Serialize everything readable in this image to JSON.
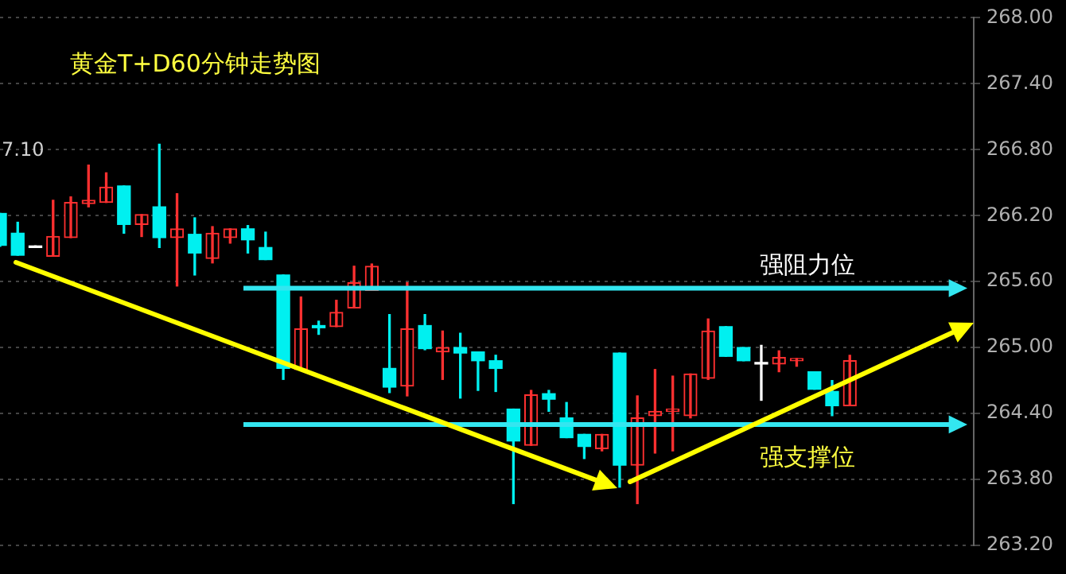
{
  "chart_data": {
    "type": "candlestick",
    "title": "黄金T+D60分钟走势图",
    "annotations": [
      "7.10"
    ],
    "categories": [
      null,
      null,
      null,
      null,
      null,
      null,
      null,
      null,
      null,
      null,
      null,
      null,
      null,
      null,
      null,
      null,
      null,
      null,
      null,
      null,
      null,
      null,
      null,
      null,
      null,
      null,
      null,
      null,
      null,
      null,
      null,
      null,
      null,
      null,
      null,
      null,
      null,
      null,
      null,
      null,
      null,
      null,
      null,
      null,
      null,
      null,
      null,
      null,
      null,
      null,
      null,
      null,
      null,
      null,
      null,
      null
    ],
    "ohlc": [
      [
        266.22,
        266.22,
        265.92,
        265.93
      ],
      [
        266.04,
        266.14,
        265.84,
        265.84
      ],
      [
        265.91,
        265.91,
        265.91,
        265.91
      ],
      [
        265.83,
        266.34,
        265.83,
        266.01
      ],
      [
        266.0,
        266.37,
        266.0,
        266.32
      ],
      [
        266.31,
        266.66,
        266.28,
        266.34
      ],
      [
        266.32,
        266.59,
        266.32,
        266.46
      ],
      [
        266.47,
        266.47,
        266.04,
        266.12
      ],
      [
        266.12,
        266.21,
        266.01,
        266.21
      ],
      [
        266.28,
        266.85,
        265.91,
        266.0
      ],
      [
        266.0,
        266.4,
        265.56,
        266.08
      ],
      [
        266.03,
        266.18,
        265.66,
        265.86
      ],
      [
        265.81,
        266.1,
        265.77,
        266.04
      ],
      [
        266.0,
        266.08,
        265.95,
        266.08
      ],
      [
        266.08,
        266.11,
        265.86,
        265.98
      ],
      [
        265.91,
        266.05,
        265.8,
        265.8
      ],
      [
        265.66,
        265.66,
        264.71,
        264.81
      ],
      [
        264.8,
        265.46,
        264.8,
        265.17
      ],
      [
        265.2,
        265.24,
        265.12,
        265.18
      ],
      [
        265.19,
        265.43,
        265.19,
        265.32
      ],
      [
        265.36,
        265.74,
        265.36,
        265.59
      ],
      [
        265.52,
        265.76,
        265.52,
        265.74
      ],
      [
        264.81,
        265.3,
        264.59,
        264.64
      ],
      [
        264.65,
        265.59,
        264.56,
        265.17
      ],
      [
        265.2,
        265.3,
        264.98,
        264.99
      ],
      [
        264.96,
        265.15,
        264.71,
        265.0
      ],
      [
        265.0,
        265.13,
        264.54,
        264.95
      ],
      [
        264.96,
        264.96,
        264.61,
        264.88
      ],
      [
        264.88,
        264.93,
        264.6,
        264.81
      ],
      [
        264.44,
        264.44,
        263.58,
        264.15
      ],
      [
        264.11,
        264.61,
        264.11,
        264.57
      ],
      [
        264.58,
        264.61,
        264.42,
        264.53
      ],
      [
        264.36,
        264.5,
        264.18,
        264.18
      ],
      [
        264.21,
        264.21,
        263.99,
        264.1
      ],
      [
        264.08,
        264.21,
        264.06,
        264.21
      ],
      [
        264.95,
        264.95,
        263.73,
        263.93
      ],
      [
        263.93,
        264.56,
        263.58,
        264.36
      ],
      [
        264.38,
        264.8,
        264.04,
        264.42
      ],
      [
        264.42,
        264.74,
        264.06,
        264.44
      ],
      [
        264.38,
        264.76,
        264.36,
        264.76
      ],
      [
        264.72,
        265.26,
        264.71,
        265.15
      ],
      [
        265.19,
        265.19,
        264.92,
        264.92
      ],
      [
        265.0,
        265.0,
        264.88,
        264.88
      ],
      [
        264.85,
        265.02,
        264.52,
        264.85
      ],
      [
        264.85,
        264.97,
        264.78,
        264.91
      ],
      [
        264.88,
        264.9,
        264.83,
        264.9
      ],
      [
        264.78,
        264.78,
        264.62,
        264.62
      ],
      [
        264.6,
        264.7,
        264.38,
        264.47
      ],
      [
        264.47,
        264.93,
        264.47,
        264.88
      ],
      null,
      null,
      null,
      null,
      null,
      null,
      null
    ],
    "ylim": [
      263.2,
      268.0
    ],
    "yticks": [
      {
        "value": 263.2,
        "label": "263.20"
      },
      {
        "value": 263.8,
        "label": "263.80"
      },
      {
        "value": 264.4,
        "label": "264.40"
      },
      {
        "value": 265.0,
        "label": "265.00"
      },
      {
        "value": 265.6,
        "label": "265.60"
      },
      {
        "value": 266.2,
        "label": "266.20"
      },
      {
        "value": 266.8,
        "label": "266.80"
      },
      {
        "value": 267.4,
        "label": "267.40"
      },
      {
        "value": 268.0,
        "label": "268.00"
      }
    ],
    "tick_labels": "y",
    "grid": "y",
    "legend": false,
    "ref_lines": [
      {
        "axis": "y",
        "value": 265.54,
        "label": "强阻力位",
        "color": "#33e6f0"
      },
      {
        "axis": "y",
        "value": 264.3,
        "label": "强支撑位",
        "color": "#33e6f0"
      }
    ]
  }
}
